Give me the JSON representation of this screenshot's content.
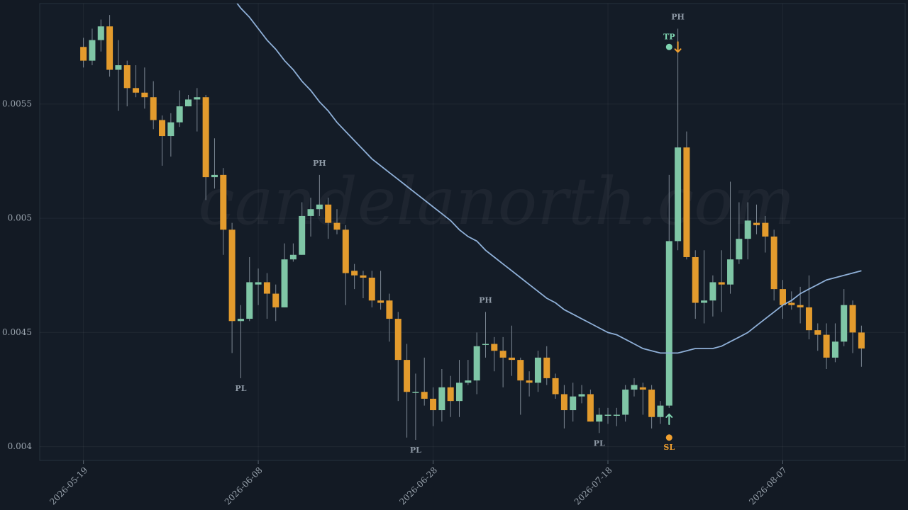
{
  "chart_data": {
    "type": "candlestick",
    "watermark": "candelanorth.com",
    "x": [
      "2026-05-19",
      "2026-05-20",
      "2026-05-21",
      "2026-05-22",
      "2026-05-23",
      "2026-05-24",
      "2026-05-25",
      "2026-05-26",
      "2026-05-27",
      "2026-05-28",
      "2026-05-29",
      "2026-05-30",
      "2026-05-31",
      "2026-06-01",
      "2026-06-02",
      "2026-06-03",
      "2026-06-04",
      "2026-06-05",
      "2026-06-06",
      "2026-06-07",
      "2026-06-08",
      "2026-06-09",
      "2026-06-10",
      "2026-06-11",
      "2026-06-12",
      "2026-06-13",
      "2026-06-14",
      "2026-06-15",
      "2026-06-16",
      "2026-06-17",
      "2026-06-18",
      "2026-06-19",
      "2026-06-20",
      "2026-06-21",
      "2026-06-22",
      "2026-06-23",
      "2026-06-24",
      "2026-06-25",
      "2026-06-26",
      "2026-06-27",
      "2026-06-28",
      "2026-06-29",
      "2026-06-30",
      "2026-07-01",
      "2026-07-02",
      "2026-07-03",
      "2026-07-04",
      "2026-07-05",
      "2026-07-06",
      "2026-07-07",
      "2026-07-08",
      "2026-07-09",
      "2026-07-10",
      "2026-07-11",
      "2026-07-12",
      "2026-07-13",
      "2026-07-14",
      "2026-07-15",
      "2026-07-16",
      "2026-07-17",
      "2026-07-18",
      "2026-07-19",
      "2026-07-20",
      "2026-07-21",
      "2026-07-22",
      "2026-07-23",
      "2026-07-24",
      "2026-07-25",
      "2026-07-26",
      "2026-07-27",
      "2026-07-28",
      "2026-07-29",
      "2026-07-30",
      "2026-07-31",
      "2026-08-01",
      "2026-08-02",
      "2026-08-03",
      "2026-08-04",
      "2026-08-05",
      "2026-08-06",
      "2026-08-07",
      "2026-08-08",
      "2026-08-09",
      "2026-08-10",
      "2026-08-11",
      "2026-08-12",
      "2026-08-13",
      "2026-08-14",
      "2026-08-15",
      "2026-08-16"
    ],
    "open": [
      0.00575,
      0.00569,
      0.00578,
      0.00584,
      0.00565,
      0.00567,
      0.00557,
      0.00555,
      0.00553,
      0.00543,
      0.00536,
      0.00542,
      0.00549,
      0.00552,
      0.00553,
      0.00518,
      0.00519,
      0.00495,
      0.00455,
      0.00456,
      0.00471,
      0.00472,
      0.00467,
      0.00461,
      0.00482,
      0.00484,
      0.00501,
      0.00504,
      0.00506,
      0.00498,
      0.00495,
      0.00477,
      0.00475,
      0.00474,
      0.00464,
      0.00464,
      0.00456,
      0.00438,
      0.00424,
      0.00424,
      0.00421,
      0.00416,
      0.00426,
      0.0042,
      0.00428,
      0.00429,
      0.00445,
      0.00445,
      0.00442,
      0.00439,
      0.00438,
      0.00429,
      0.00428,
      0.00439,
      0.0043,
      0.00423,
      0.00416,
      0.00422,
      0.00423,
      0.00411,
      0.00414,
      0.00414,
      0.00414,
      0.00425,
      0.00426,
      0.00425,
      0.00413,
      0.00418,
      0.0049,
      0.00531,
      0.00483,
      0.00463,
      0.00464,
      0.00472,
      0.00471,
      0.00482,
      0.00491,
      0.00498,
      0.00498,
      0.00492,
      0.00469,
      0.00463,
      0.00462,
      0.00461,
      0.00451,
      0.00449,
      0.00439,
      0.00446,
      0.00462,
      0.0045
    ],
    "high": [
      0.00579,
      0.00583,
      0.00587,
      0.00589,
      0.00578,
      0.00569,
      0.00567,
      0.00566,
      0.0056,
      0.00545,
      0.00546,
      0.00556,
      0.00554,
      0.00557,
      0.00554,
      0.00535,
      0.00522,
      0.00498,
      0.00462,
      0.00483,
      0.00478,
      0.00476,
      0.00471,
      0.00489,
      0.00489,
      0.00507,
      0.00509,
      0.00519,
      0.00509,
      0.00504,
      0.00497,
      0.0048,
      0.00477,
      0.00477,
      0.00477,
      0.00467,
      0.00459,
      0.00445,
      0.00432,
      0.00439,
      0.00426,
      0.00434,
      0.00431,
      0.00438,
      0.00438,
      0.0045,
      0.00459,
      0.00448,
      0.00448,
      0.00453,
      0.00439,
      0.00433,
      0.00442,
      0.00444,
      0.00432,
      0.00427,
      0.00428,
      0.00427,
      0.00425,
      0.00417,
      0.00417,
      0.00417,
      0.00427,
      0.0043,
      0.00428,
      0.00427,
      0.0042,
      0.00519,
      0.00583,
      0.00538,
      0.00486,
      0.00486,
      0.00475,
      0.00486,
      0.00516,
      0.00507,
      0.00507,
      0.00506,
      0.00501,
      0.00495,
      0.00473,
      0.00468,
      0.0047,
      0.00475,
      0.00454,
      0.00454,
      0.00454,
      0.00469,
      0.00464,
      0.00453
    ],
    "low": [
      0.00566,
      0.00567,
      0.00573,
      0.00562,
      0.00547,
      0.00549,
      0.00553,
      0.00548,
      0.00539,
      0.00523,
      0.00527,
      0.0054,
      0.00549,
      0.00538,
      0.00508,
      0.00513,
      0.00484,
      0.00441,
      0.0043,
      0.00455,
      0.00462,
      0.00456,
      0.00455,
      0.00461,
      0.00481,
      0.00484,
      0.00492,
      0.00501,
      0.00491,
      0.00493,
      0.00462,
      0.00469,
      0.00465,
      0.00461,
      0.0046,
      0.00446,
      0.0042,
      0.00404,
      0.00403,
      0.00418,
      0.00409,
      0.00411,
      0.00413,
      0.00413,
      0.00427,
      0.00423,
      0.00439,
      0.00433,
      0.00426,
      0.00431,
      0.00414,
      0.00422,
      0.00424,
      0.00427,
      0.00421,
      0.00408,
      0.00411,
      0.00419,
      0.00411,
      0.00406,
      0.0041,
      0.00409,
      0.00411,
      0.00422,
      0.00414,
      0.00408,
      0.0041,
      0.00417,
      0.00486,
      0.00482,
      0.00456,
      0.00454,
      0.00457,
      0.00459,
      0.00467,
      0.0048,
      0.00482,
      0.00493,
      0.00485,
      0.00464,
      0.00456,
      0.0046,
      0.00454,
      0.00447,
      0.00442,
      0.00434,
      0.00437,
      0.00444,
      0.00441,
      0.00435
    ],
    "close": [
      0.00569,
      0.00578,
      0.00584,
      0.00565,
      0.00567,
      0.00557,
      0.00555,
      0.00553,
      0.00543,
      0.00536,
      0.00542,
      0.00549,
      0.00552,
      0.00553,
      0.00518,
      0.00519,
      0.00495,
      0.00455,
      0.00456,
      0.00472,
      0.00472,
      0.00467,
      0.00461,
      0.00482,
      0.00484,
      0.00501,
      0.00504,
      0.00506,
      0.00498,
      0.00495,
      0.00476,
      0.00475,
      0.00474,
      0.00464,
      0.00463,
      0.00456,
      0.00438,
      0.00424,
      0.00424,
      0.00421,
      0.00416,
      0.00426,
      0.0042,
      0.00428,
      0.00429,
      0.00444,
      0.00445,
      0.00442,
      0.00439,
      0.00438,
      0.00429,
      0.00428,
      0.00439,
      0.0043,
      0.00423,
      0.00416,
      0.00422,
      0.00423,
      0.00411,
      0.00414,
      0.00414,
      0.00414,
      0.00425,
      0.00427,
      0.00425,
      0.00413,
      0.00418,
      0.0049,
      0.00531,
      0.00483,
      0.00463,
      0.00464,
      0.00472,
      0.00471,
      0.00482,
      0.00491,
      0.00499,
      0.00497,
      0.00492,
      0.00469,
      0.00462,
      0.00462,
      0.00461,
      0.00451,
      0.00449,
      0.00439,
      0.00446,
      0.00462,
      0.0045,
      0.00443
    ],
    "up_color": "#7fc6a6",
    "down_color": "#e39b2d",
    "wick_color": "#7d8894",
    "line": {
      "color": "#8fb0d8",
      "values": [
        null,
        null,
        null,
        null,
        null,
        null,
        null,
        null,
        null,
        null,
        null,
        null,
        null,
        null,
        null,
        null,
        null,
        0.00597,
        0.00592,
        0.00588,
        0.00583,
        0.00578,
        0.00574,
        0.00569,
        0.00565,
        0.0056,
        0.00556,
        0.00551,
        0.00547,
        0.00542,
        0.00538,
        0.00534,
        0.0053,
        0.00526,
        0.00523,
        0.0052,
        0.00517,
        0.00514,
        0.00511,
        0.00508,
        0.00505,
        0.00502,
        0.00499,
        0.00495,
        0.00492,
        0.0049,
        0.00486,
        0.00483,
        0.0048,
        0.00477,
        0.00474,
        0.00471,
        0.00468,
        0.00465,
        0.00463,
        0.0046,
        0.00458,
        0.00456,
        0.00454,
        0.00452,
        0.0045,
        0.00449,
        0.00447,
        0.00445,
        0.00443,
        0.00442,
        0.00441,
        0.00441,
        0.00441,
        0.00442,
        0.00443,
        0.00443,
        0.00443,
        0.00444,
        0.00446,
        0.00448,
        0.0045,
        0.00453,
        0.00456,
        0.00459,
        0.00462,
        0.00464,
        0.00467,
        0.00469,
        0.00471,
        0.00473,
        0.00474,
        0.00475,
        0.00476,
        0.00477
      ]
    },
    "pivots": [
      {
        "label": "PL",
        "x": "2026-06-06",
        "anchor": "low"
      },
      {
        "label": "PH",
        "x": "2026-06-15",
        "anchor": "high"
      },
      {
        "label": "PL",
        "x": "2026-06-26",
        "anchor": "low"
      },
      {
        "label": "PH",
        "x": "2026-07-04",
        "anchor": "high"
      },
      {
        "label": "PL",
        "x": "2026-07-17",
        "anchor": "low"
      },
      {
        "label": "PH",
        "x": "2026-07-26",
        "anchor": "high"
      }
    ],
    "levels": [
      {
        "label": "TP",
        "x": "2026-07-25",
        "value": 0.00575,
        "color": "#7fd4b0"
      },
      {
        "label": "SL",
        "x": "2026-07-25",
        "value": 0.00404,
        "color": "#f0a030"
      }
    ],
    "arrows": [
      {
        "x": "2026-07-25",
        "value": 0.00412,
        "direction": "up",
        "color": "#7fd4b0"
      },
      {
        "x": "2026-07-26",
        "value": 0.00575,
        "direction": "down",
        "color": "#f0a030"
      }
    ],
    "xlim": [
      "2026-05-14",
      "2026-08-21"
    ],
    "xticks": [
      "2026-05-19",
      "2026-06-08",
      "2026-06-28",
      "2026-07-18",
      "2026-08-07"
    ],
    "ylim": [
      0.00394,
      0.00594
    ],
    "yticks": [
      0.004,
      0.0045,
      0.005,
      0.0055
    ],
    "grid": true
  }
}
